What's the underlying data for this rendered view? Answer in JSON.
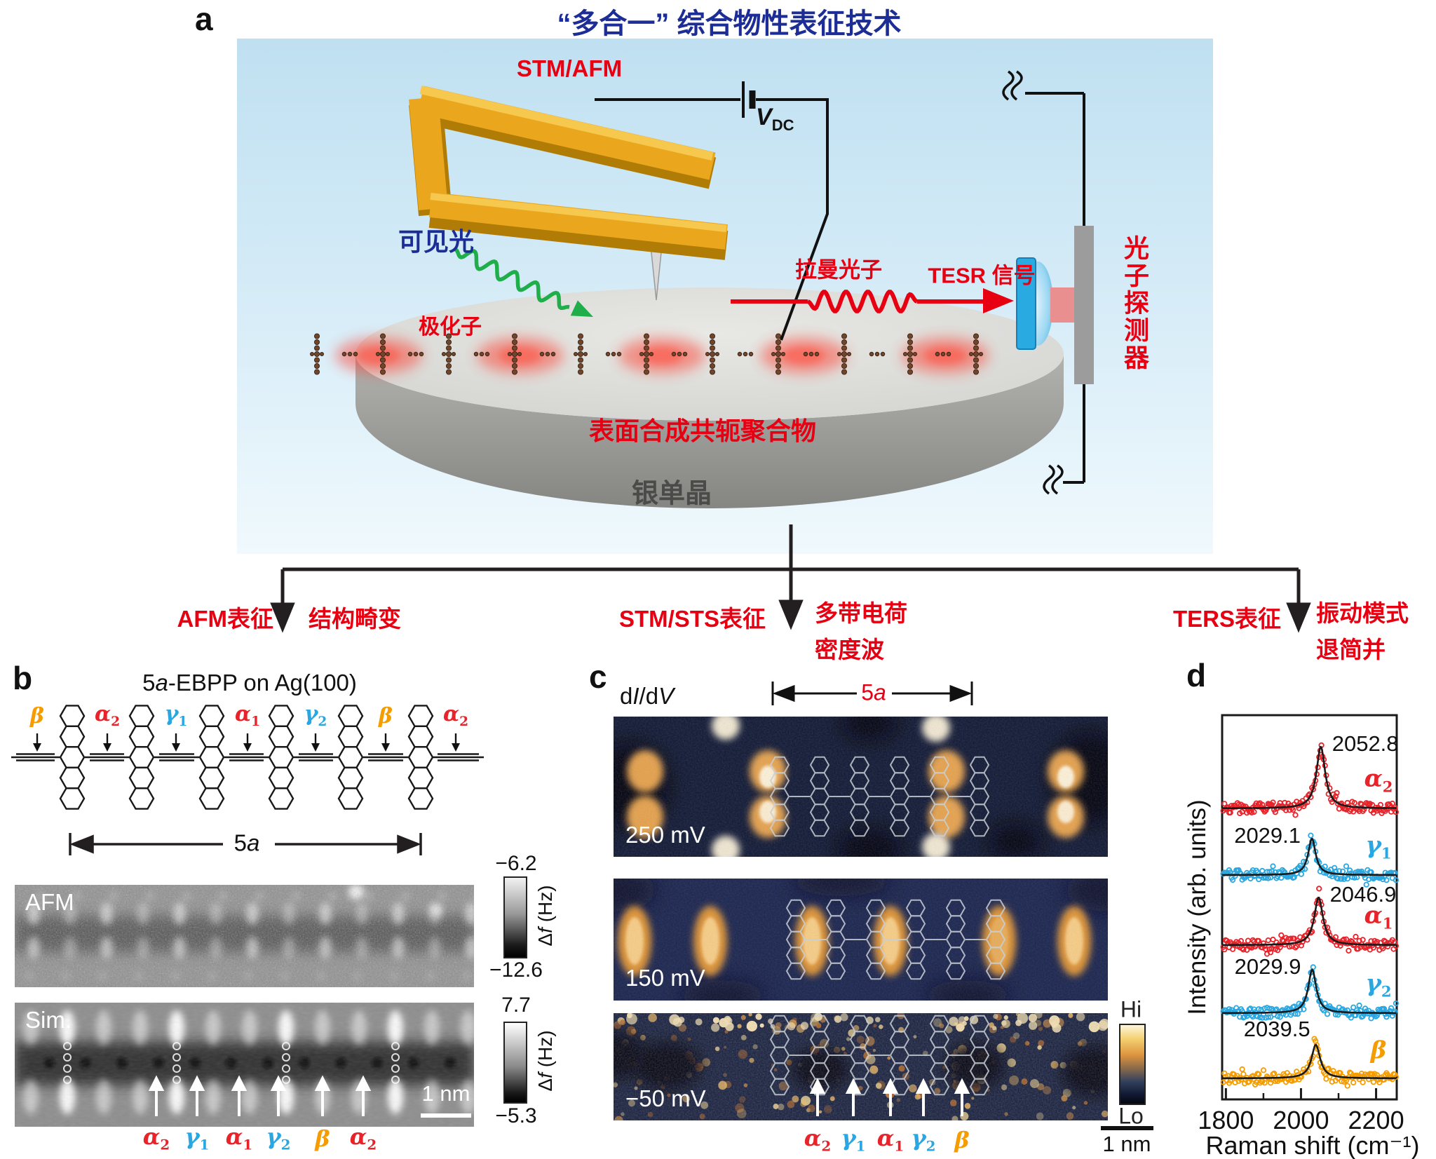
{
  "colors": {
    "accent_red": "#e60012",
    "navy_blue": "#1c2d96",
    "greek_red": "#e8232a",
    "greek_blue": "#2aa7e0",
    "greek_orange": "#f49c00",
    "gold": "#eaa71e",
    "green_light": "#1fae4a"
  },
  "panel_a": {
    "label": "a",
    "title": "“多合一” 综合物性表征技术",
    "probe_label": "STM/AFM",
    "bias_label": {
      "main": "V",
      "sub": "DC"
    },
    "visible_light": "可见光",
    "raman_photon": "拉曼光子",
    "tesr_signal": "TESR 信号",
    "polaron": "极化子",
    "polymer": "表面合成共轭聚合物",
    "substrate": "银单晶",
    "detector": "光子探测器"
  },
  "branches": [
    {
      "method": "AFM表征",
      "result_line1": "结构畸变",
      "result_line2": ""
    },
    {
      "method": "STM/STS表征",
      "result_line1": "多带电荷",
      "result_line2": "密度波"
    },
    {
      "method": "TERS表征",
      "result_line1": "振动模式",
      "result_line2": "退简并"
    }
  ],
  "panel_b": {
    "label": "b",
    "title": {
      "pre": "5",
      "italic": "a",
      "post": "-EBPP on Ag(100)"
    },
    "bond_labels": [
      {
        "base": "β",
        "sub": "",
        "color": "#f49c00"
      },
      {
        "base": "α",
        "sub": "2",
        "color": "#e8232a"
      },
      {
        "base": "γ",
        "sub": "1",
        "color": "#2aa7e0"
      },
      {
        "base": "α",
        "sub": "1",
        "color": "#e8232a"
      },
      {
        "base": "γ",
        "sub": "2",
        "color": "#2aa7e0"
      },
      {
        "base": "β",
        "sub": "",
        "color": "#f49c00"
      },
      {
        "base": "α",
        "sub": "2",
        "color": "#e8232a"
      }
    ],
    "span": {
      "pre": "5",
      "italic": "a"
    },
    "afm": {
      "name": "AFM",
      "scale_top": "−6.2",
      "scale_bottom": "−12.6",
      "scale_unit_pre": "Δ",
      "scale_unit_it": "f",
      "scale_unit_post": " (Hz)"
    },
    "sim": {
      "name": "Sim.",
      "scale_top": "7.7",
      "scale_bottom": "−5.3",
      "scale_unit_pre": "Δ",
      "scale_unit_it": "f",
      "scale_unit_post": " (Hz)",
      "scalebar": "1 nm"
    },
    "site_labels": [
      {
        "base": "α",
        "sub": "2",
        "color": "#e8232a"
      },
      {
        "base": "γ",
        "sub": "1",
        "color": "#2aa7e0"
      },
      {
        "base": "α",
        "sub": "1",
        "color": "#e8232a"
      },
      {
        "base": "γ",
        "sub": "2",
        "color": "#2aa7e0"
      },
      {
        "base": "β",
        "sub": "",
        "color": "#f49c00"
      },
      {
        "base": "α",
        "sub": "2",
        "color": "#e8232a"
      }
    ]
  },
  "panel_c": {
    "label": "c",
    "map_type": {
      "d1": "d",
      "i": "I",
      "d2": "/d",
      "v": "V"
    },
    "span": {
      "pre": "5",
      "italic": "a"
    },
    "biases": [
      "250 mV",
      "150 mV",
      "−50 mV"
    ],
    "scale_hi": "Hi",
    "scale_lo": "Lo",
    "scalebar": "1 nm",
    "site_labels": [
      {
        "base": "α",
        "sub": "2",
        "color": "#e8232a"
      },
      {
        "base": "γ",
        "sub": "1",
        "color": "#2aa7e0"
      },
      {
        "base": "α",
        "sub": "1",
        "color": "#e8232a"
      },
      {
        "base": "γ",
        "sub": "2",
        "color": "#2aa7e0"
      },
      {
        "base": "β",
        "sub": "",
        "color": "#f49c00"
      }
    ]
  },
  "panel_d": {
    "label": "d"
  },
  "chart_data": {
    "type": "scatter",
    "description": "Five vertically offset TERS Raman spectra (open-circle data) with black Lorentzian fits",
    "xlabel": "Raman shift (cm⁻¹)",
    "ylabel": "Intensity (arb. units)",
    "x_range": [
      1790,
      2255
    ],
    "x_ticks": [
      1800,
      2000,
      2200
    ],
    "x_minor_ticks": [
      1900,
      2100
    ],
    "grid": false,
    "legend_position": "right-of-each-curve",
    "series": [
      {
        "name": {
          "base": "α",
          "sub": "2"
        },
        "color": "#e8232a",
        "peak_center": 2052.8,
        "peak_label": "2052.8",
        "peak_label_side": "right",
        "rel_amplitude": 88,
        "hwhm": 14,
        "fit": "Lorentzian",
        "fit_color": "#1a1a1a"
      },
      {
        "name": {
          "base": "γ",
          "sub": "1"
        },
        "color": "#2aa7e0",
        "peak_center": 2029.1,
        "peak_label": "2029.1",
        "peak_label_side": "left",
        "rel_amplitude": 52,
        "hwhm": 12,
        "fit": "Lorentzian",
        "fit_color": "#1a1a1a"
      },
      {
        "name": {
          "base": "α",
          "sub": "1"
        },
        "color": "#e8232a",
        "peak_center": 2046.9,
        "peak_label": "2046.9",
        "peak_label_side": "right",
        "rel_amplitude": 68,
        "hwhm": 14,
        "fit": "Lorentzian",
        "fit_color": "#1a1a1a"
      },
      {
        "name": {
          "base": "γ",
          "sub": "2"
        },
        "color": "#2aa7e0",
        "peak_center": 2029.9,
        "peak_label": "2029.9",
        "peak_label_side": "left",
        "rel_amplitude": 62,
        "hwhm": 13,
        "fit": "Lorentzian",
        "fit_color": "#1a1a1a"
      },
      {
        "name": {
          "base": "β",
          "sub": ""
        },
        "color": "#f49c00",
        "peak_center": 2039.5,
        "peak_label": "2039.5",
        "peak_label_side": "above-left",
        "rel_amplitude": 48,
        "hwhm": 14,
        "fit": "Lorentzian",
        "fit_color": "#1a1a1a"
      }
    ]
  }
}
